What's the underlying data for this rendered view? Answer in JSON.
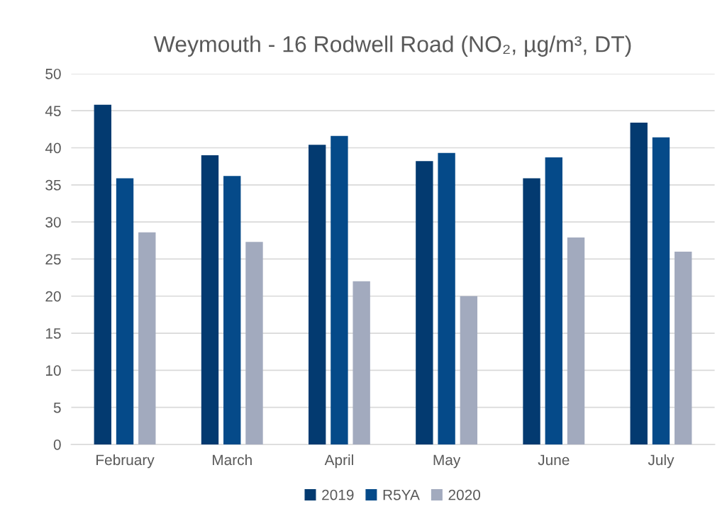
{
  "chart_data": {
    "type": "bar",
    "title": "Weymouth - 16 Rodwell Road (NO₂, µg/m³, DT)",
    "categories": [
      "February",
      "March",
      "April",
      "May",
      "June",
      "July"
    ],
    "series": [
      {
        "name": "2019",
        "color": "#033a70",
        "values": [
          45.8,
          39.0,
          40.4,
          38.2,
          35.9,
          43.4
        ]
      },
      {
        "name": "R5YA",
        "color": "#054a89",
        "values": [
          35.9,
          36.2,
          41.6,
          39.3,
          38.7,
          41.4
        ]
      },
      {
        "name": "2020",
        "color": "#a2aabe",
        "values": [
          28.6,
          27.3,
          22.0,
          20.0,
          27.9,
          26.0
        ]
      }
    ],
    "ylim": [
      0,
      50
    ],
    "yticks": [
      0,
      5,
      10,
      15,
      20,
      25,
      30,
      35,
      40,
      45,
      50
    ],
    "grid": "y",
    "legend": "bottom"
  }
}
